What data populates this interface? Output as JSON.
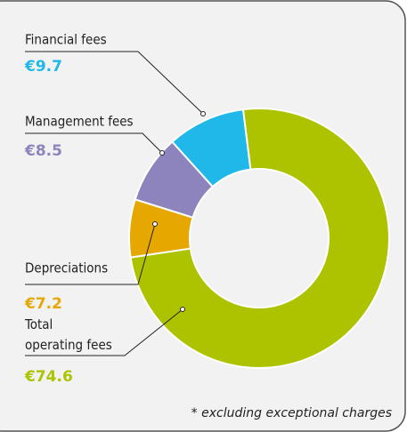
{
  "chart_data": {
    "type": "donut",
    "categories": [
      "Financial fees",
      "Management fees",
      "Depreciations",
      "Total operating fees"
    ],
    "values": [
      9.7,
      8.5,
      7.2,
      74.6
    ],
    "value_labels": [
      "€9.7",
      "€8.5",
      "€7.2",
      "€74.6"
    ],
    "colors": [
      "#1fb8e8",
      "#8e84bd",
      "#e6a800",
      "#aec300"
    ],
    "annotation": "* excluding exceptional charges"
  }
}
